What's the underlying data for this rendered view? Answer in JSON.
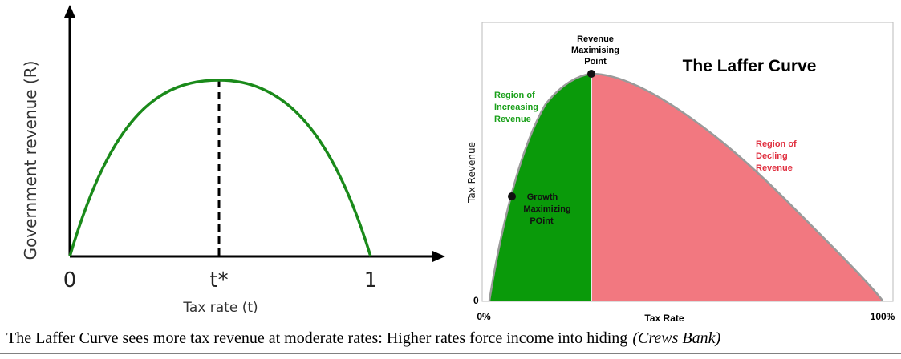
{
  "left_panel": {
    "y_axis_label": "Government revenue (R)",
    "x_ticks": [
      "0",
      "t*",
      "1"
    ],
    "x_axis_label": "Tax rate (t)"
  },
  "right_panel": {
    "title": "The Laffer Curve",
    "peak_label": [
      "Revenue",
      "Maximising",
      "Point"
    ],
    "increasing_label": [
      "Region of",
      "Increasing",
      "Revenue"
    ],
    "growth_label": [
      "Growth",
      "Maximizing",
      "POint"
    ],
    "declining_label": [
      "Region of",
      "Decling",
      "Revenue"
    ],
    "y_axis_label": "Tax Revenue",
    "origin_label": "0",
    "x_start_label": "0%",
    "x_axis_label": "Tax Rate",
    "x_end_label": "100%"
  },
  "caption": {
    "text": "The Laffer Curve sees more tax revenue at moderate rates: Higher rates force income into hiding",
    "source": "(Crews Bank)"
  }
}
